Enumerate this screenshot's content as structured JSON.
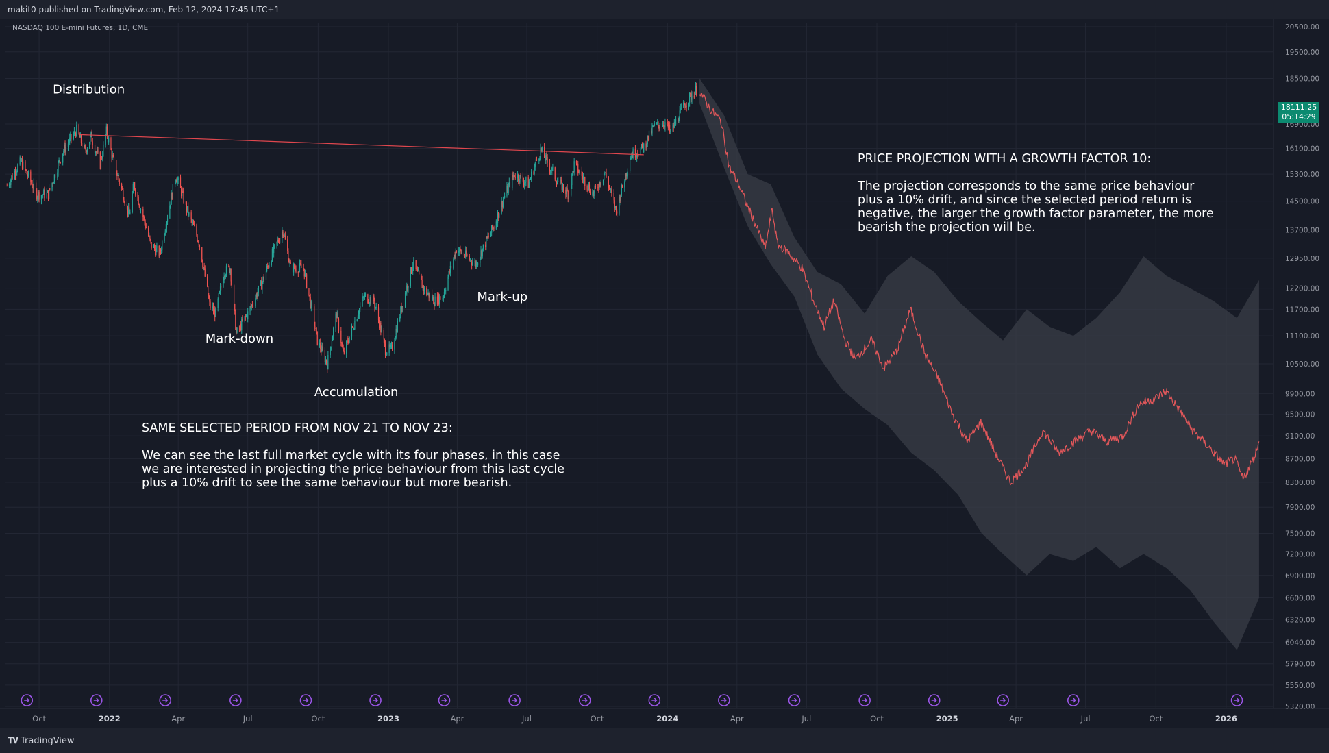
{
  "header": {
    "published": "makit0 published on TradingView.com, Feb 12, 2024 17:45 UTC+1"
  },
  "footer": {
    "brand": "TradingView",
    "logo_icon": "tradingview-logo-icon"
  },
  "colors": {
    "background": "#171b26",
    "up_candle": "#26a69a",
    "down_candle": "#ef5350",
    "projection_line": "#e2575a",
    "projection_band": "#3a3d47",
    "trendline": "#e0474e",
    "price_badge": "#0c8a70",
    "event_icon": "#9a55e6"
  },
  "chart_data": {
    "type": "line",
    "title": "NASDAQ 100 E-mini Futures, 1D, CME",
    "xlabel": "",
    "ylabel": "",
    "log_scale": true,
    "grid": true,
    "ylim": [
      5320,
      20500
    ],
    "y_ticks": [
      "20500.00",
      "19500.00",
      "18500.00",
      "16900.00",
      "16100.00",
      "15300.00",
      "14500.00",
      "13700.00",
      "12950.00",
      "12200.00",
      "11700.00",
      "11100.00",
      "10500.00",
      "9900.00",
      "9500.00",
      "9100.00",
      "8700.00",
      "8300.00",
      "7900.00",
      "7500.00",
      "7200.00",
      "6900.00",
      "6600.00",
      "6320.00",
      "6040.00",
      "5790.00",
      "5550.00",
      "5320.00"
    ],
    "x_ticks": [
      {
        "label": "Oct",
        "date": "2021-10-01",
        "bold": false
      },
      {
        "label": "2022",
        "date": "2022-01-01",
        "bold": true
      },
      {
        "label": "Apr",
        "date": "2022-04-01",
        "bold": false
      },
      {
        "label": "Jul",
        "date": "2022-07-01",
        "bold": false
      },
      {
        "label": "Oct",
        "date": "2022-10-01",
        "bold": false
      },
      {
        "label": "2023",
        "date": "2023-01-01",
        "bold": true
      },
      {
        "label": "Apr",
        "date": "2023-04-01",
        "bold": false
      },
      {
        "label": "Jul",
        "date": "2023-07-01",
        "bold": false
      },
      {
        "label": "Oct",
        "date": "2023-10-01",
        "bold": false
      },
      {
        "label": "2024",
        "date": "2024-01-01",
        "bold": true
      },
      {
        "label": "Apr",
        "date": "2024-04-01",
        "bold": false
      },
      {
        "label": "Jul",
        "date": "2024-07-01",
        "bold": false
      },
      {
        "label": "Oct",
        "date": "2024-10-01",
        "bold": false
      },
      {
        "label": "2025",
        "date": "2025-01-01",
        "bold": true
      },
      {
        "label": "Apr",
        "date": "2025-04-01",
        "bold": false
      },
      {
        "label": "Jul",
        "date": "2025-07-01",
        "bold": false
      },
      {
        "label": "Oct",
        "date": "2025-10-01",
        "bold": false
      },
      {
        "label": "2026",
        "date": "2026-01-01",
        "bold": true
      }
    ],
    "last_price": {
      "value": "18111.25",
      "countdown": "05:14:29"
    },
    "series": [
      {
        "kind": "price_history",
        "points": [
          {
            "x": "2021-08-20",
            "y": 14950
          },
          {
            "x": "2021-09-07",
            "y": 15700
          },
          {
            "x": "2021-09-28",
            "y": 14700
          },
          {
            "x": "2021-10-13",
            "y": 14700
          },
          {
            "x": "2021-11-01",
            "y": 16000
          },
          {
            "x": "2021-11-19",
            "y": 16700
          },
          {
            "x": "2021-11-30",
            "y": 16000
          },
          {
            "x": "2021-12-08",
            "y": 16500
          },
          {
            "x": "2021-12-20",
            "y": 15600
          },
          {
            "x": "2021-12-28",
            "y": 16650
          },
          {
            "x": "2022-01-07",
            "y": 15600
          },
          {
            "x": "2022-01-27",
            "y": 14100
          },
          {
            "x": "2022-02-02",
            "y": 15000
          },
          {
            "x": "2022-02-24",
            "y": 13300
          },
          {
            "x": "2022-03-08",
            "y": 13050
          },
          {
            "x": "2022-03-29",
            "y": 15250
          },
          {
            "x": "2022-04-14",
            "y": 14150
          },
          {
            "x": "2022-04-28",
            "y": 13400
          },
          {
            "x": "2022-05-12",
            "y": 11800
          },
          {
            "x": "2022-05-20",
            "y": 11600
          },
          {
            "x": "2022-05-31",
            "y": 12600
          },
          {
            "x": "2022-06-08",
            "y": 12700
          },
          {
            "x": "2022-06-16",
            "y": 11150
          },
          {
            "x": "2022-07-01",
            "y": 11600
          },
          {
            "x": "2022-07-19",
            "y": 12300
          },
          {
            "x": "2022-08-01",
            "y": 13000
          },
          {
            "x": "2022-08-16",
            "y": 13700
          },
          {
            "x": "2022-08-26",
            "y": 12700
          },
          {
            "x": "2022-09-12",
            "y": 12700
          },
          {
            "x": "2022-09-30",
            "y": 11000
          },
          {
            "x": "2022-10-13",
            "y": 10500
          },
          {
            "x": "2022-10-25",
            "y": 11600
          },
          {
            "x": "2022-11-03",
            "y": 10700
          },
          {
            "x": "2022-11-30",
            "y": 12000
          },
          {
            "x": "2022-12-13",
            "y": 11900
          },
          {
            "x": "2022-12-28",
            "y": 10800
          },
          {
            "x": "2023-01-05",
            "y": 10800
          },
          {
            "x": "2023-02-02",
            "y": 12800
          },
          {
            "x": "2023-02-17",
            "y": 12150
          },
          {
            "x": "2023-03-02",
            "y": 11900
          },
          {
            "x": "2023-03-13",
            "y": 12000
          },
          {
            "x": "2023-03-31",
            "y": 13200
          },
          {
            "x": "2023-04-25",
            "y": 12800
          },
          {
            "x": "2023-05-19",
            "y": 13800
          },
          {
            "x": "2023-06-01",
            "y": 14600
          },
          {
            "x": "2023-06-15",
            "y": 15300
          },
          {
            "x": "2023-07-03",
            "y": 15000
          },
          {
            "x": "2023-07-19",
            "y": 16050
          },
          {
            "x": "2023-08-10",
            "y": 15100
          },
          {
            "x": "2023-08-25",
            "y": 14700
          },
          {
            "x": "2023-09-01",
            "y": 15600
          },
          {
            "x": "2023-09-26",
            "y": 14700
          },
          {
            "x": "2023-10-11",
            "y": 15350
          },
          {
            "x": "2023-10-26",
            "y": 14200
          },
          {
            "x": "2023-11-14",
            "y": 15900
          },
          {
            "x": "2023-11-30",
            "y": 16100
          },
          {
            "x": "2023-12-14",
            "y": 16800
          },
          {
            "x": "2023-12-29",
            "y": 16950
          },
          {
            "x": "2024-01-05",
            "y": 16600
          },
          {
            "x": "2024-01-24",
            "y": 17600
          },
          {
            "x": "2024-02-02",
            "y": 17900
          },
          {
            "x": "2024-02-09",
            "y": 18111.25
          }
        ]
      },
      {
        "kind": "projection",
        "points": [
          {
            "x": "2024-02-12",
            "y": 18050
          },
          {
            "x": "2024-02-26",
            "y": 17400
          },
          {
            "x": "2024-03-11",
            "y": 17000
          },
          {
            "x": "2024-03-22",
            "y": 15500
          },
          {
            "x": "2024-04-02",
            "y": 15050
          },
          {
            "x": "2024-04-12",
            "y": 14500
          },
          {
            "x": "2024-04-26",
            "y": 13800
          },
          {
            "x": "2024-05-08",
            "y": 13200
          },
          {
            "x": "2024-05-17",
            "y": 14250
          },
          {
            "x": "2024-05-24",
            "y": 13300
          },
          {
            "x": "2024-06-07",
            "y": 13100
          },
          {
            "x": "2024-06-25",
            "y": 12700
          },
          {
            "x": "2024-07-10",
            "y": 11900
          },
          {
            "x": "2024-07-24",
            "y": 11300
          },
          {
            "x": "2024-08-06",
            "y": 11900
          },
          {
            "x": "2024-08-20",
            "y": 11000
          },
          {
            "x": "2024-09-03",
            "y": 10600
          },
          {
            "x": "2024-09-24",
            "y": 11000
          },
          {
            "x": "2024-10-10",
            "y": 10400
          },
          {
            "x": "2024-10-28",
            "y": 10800
          },
          {
            "x": "2024-11-14",
            "y": 11700
          },
          {
            "x": "2024-12-03",
            "y": 10700
          },
          {
            "x": "2024-12-20",
            "y": 10200
          },
          {
            "x": "2025-01-08",
            "y": 9500
          },
          {
            "x": "2025-01-27",
            "y": 9000
          },
          {
            "x": "2025-02-14",
            "y": 9350
          },
          {
            "x": "2025-03-05",
            "y": 8800
          },
          {
            "x": "2025-03-25",
            "y": 8300
          },
          {
            "x": "2025-04-15",
            "y": 8600
          },
          {
            "x": "2025-05-06",
            "y": 9200
          },
          {
            "x": "2025-05-27",
            "y": 8800
          },
          {
            "x": "2025-06-17",
            "y": 9000
          },
          {
            "x": "2025-07-08",
            "y": 9200
          },
          {
            "x": "2025-07-29",
            "y": 9000
          },
          {
            "x": "2025-08-19",
            "y": 9100
          },
          {
            "x": "2025-09-09",
            "y": 9700
          },
          {
            "x": "2025-09-30",
            "y": 9800
          },
          {
            "x": "2025-10-14",
            "y": 9950
          },
          {
            "x": "2025-10-31",
            "y": 9600
          },
          {
            "x": "2025-11-18",
            "y": 9200
          },
          {
            "x": "2025-12-09",
            "y": 8900
          },
          {
            "x": "2025-12-30",
            "y": 8600
          },
          {
            "x": "2026-01-12",
            "y": 8700
          },
          {
            "x": "2026-01-23",
            "y": 8350
          },
          {
            "x": "2026-02-06",
            "y": 8700
          },
          {
            "x": "2026-02-13",
            "y": 9000
          }
        ]
      },
      {
        "kind": "projection_band",
        "points": [
          {
            "x": "2024-02-12",
            "upper": 18500,
            "lower": 17600
          },
          {
            "x": "2024-03-15",
            "upper": 17200,
            "lower": 15500
          },
          {
            "x": "2024-04-15",
            "upper": 15300,
            "lower": 13800
          },
          {
            "x": "2024-05-15",
            "upper": 15000,
            "lower": 12800
          },
          {
            "x": "2024-06-15",
            "upper": 13500,
            "lower": 12000
          },
          {
            "x": "2024-07-15",
            "upper": 12600,
            "lower": 10700
          },
          {
            "x": "2024-08-15",
            "upper": 12300,
            "lower": 10000
          },
          {
            "x": "2024-09-15",
            "upper": 11600,
            "lower": 9600
          },
          {
            "x": "2024-10-15",
            "upper": 12500,
            "lower": 9300
          },
          {
            "x": "2024-11-15",
            "upper": 13000,
            "lower": 8800
          },
          {
            "x": "2024-12-15",
            "upper": 12600,
            "lower": 8500
          },
          {
            "x": "2025-01-15",
            "upper": 11900,
            "lower": 8100
          },
          {
            "x": "2025-02-15",
            "upper": 11400,
            "lower": 7500
          },
          {
            "x": "2025-03-15",
            "upper": 11000,
            "lower": 7200
          },
          {
            "x": "2025-04-15",
            "upper": 11700,
            "lower": 6900
          },
          {
            "x": "2025-05-15",
            "upper": 11300,
            "lower": 7200
          },
          {
            "x": "2025-06-15",
            "upper": 11100,
            "lower": 7100
          },
          {
            "x": "2025-07-15",
            "upper": 11500,
            "lower": 7300
          },
          {
            "x": "2025-08-15",
            "upper": 12100,
            "lower": 7000
          },
          {
            "x": "2025-09-15",
            "upper": 13000,
            "lower": 7200
          },
          {
            "x": "2025-10-15",
            "upper": 12500,
            "lower": 7000
          },
          {
            "x": "2025-11-15",
            "upper": 12200,
            "lower": 6700
          },
          {
            "x": "2025-12-15",
            "upper": 11900,
            "lower": 6300
          },
          {
            "x": "2026-01-15",
            "upper": 11500,
            "lower": 5950
          },
          {
            "x": "2026-02-13",
            "upper": 12400,
            "lower": 6600
          }
        ]
      },
      {
        "kind": "trendline",
        "points": [
          {
            "x": "2021-11-22",
            "y": 16550
          },
          {
            "x": "2023-12-01",
            "y": 15900
          }
        ]
      }
    ],
    "phase_labels": [
      {
        "text": "Distribution",
        "x": "2021-12-05",
        "y": 17950
      },
      {
        "text": "Mark-down",
        "x": "2022-06-20",
        "y": 10950
      },
      {
        "text": "Accumulation",
        "x": "2022-11-20",
        "y": 9850
      },
      {
        "text": "Mark-up",
        "x": "2023-05-30",
        "y": 11900
      }
    ],
    "annotations": [
      {
        "heading": "SAME SELECTED PERIOD FROM NOV 21 TO NOV 23:",
        "lines": [
          "We can see the last full market cycle with its four phases, in this case",
          "we are interested in projecting the price behaviour from this last cycle",
          "plus a 10% drift to see the same behaviour but more bearish."
        ]
      },
      {
        "heading": "PRICE PROJECTION WITH A GROWTH FACTOR 10:",
        "lines": [
          "The projection corresponds to the same price behaviour",
          "plus a 10% drift, and since the selected period return is",
          "negative, the larger the growth factor parameter, the more",
          "bearish the projection will be."
        ]
      }
    ],
    "event_markers": [
      "2021-09-15",
      "2021-12-15",
      "2022-03-15",
      "2022-06-15",
      "2022-09-15",
      "2022-12-15",
      "2023-03-15",
      "2023-06-15",
      "2023-09-15",
      "2023-12-15",
      "2024-03-15",
      "2024-06-15",
      "2024-09-15",
      "2024-12-15",
      "2025-03-15",
      "2025-06-15",
      "2026-01-15"
    ],
    "event_icon": "forward-arrow-icon"
  }
}
